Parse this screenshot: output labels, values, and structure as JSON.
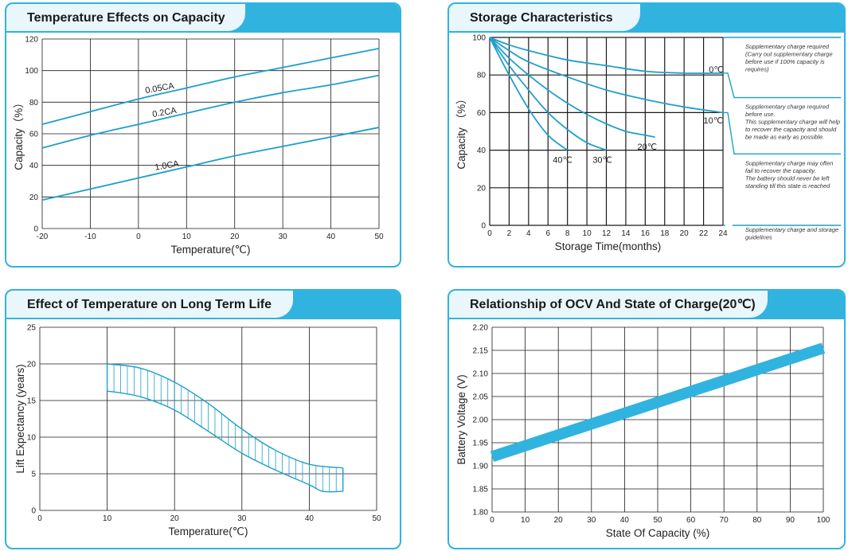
{
  "colors": {
    "accent": "#31b3e0",
    "line": "#1e9fcc",
    "grid": "#1a1a1a"
  },
  "panels": {
    "temp_capacity": {
      "title": "Temperature Effects on Capacity"
    },
    "storage": {
      "title": "Storage Characteristics"
    },
    "long_life": {
      "title": "Effect of Temperature on Long Term Life"
    },
    "ocv": {
      "title": "Relationship of OCV And State of Charge(20℃)"
    }
  },
  "chart_data": [
    {
      "type": "line",
      "title": "Temperature Effects on Capacity",
      "xlabel": "Temperature(℃)",
      "ylabel": "Capacity（%）",
      "xlim": [
        -20,
        50
      ],
      "ylim": [
        0,
        120
      ],
      "x_ticks": [
        "-20",
        "-10",
        "0",
        "10",
        "20",
        "30",
        "40",
        "50"
      ],
      "y_ticks": [
        "0",
        "20",
        "40",
        "60",
        "80",
        "100",
        "120"
      ],
      "grid": true,
      "series": [
        {
          "name": "0.05CA",
          "x": [
            -20,
            -10,
            0,
            10,
            20,
            30,
            40,
            50
          ],
          "values": [
            66,
            74,
            82,
            89,
            96,
            102,
            108,
            114
          ]
        },
        {
          "name": "0.2CA",
          "x": [
            -20,
            -10,
            0,
            10,
            20,
            30,
            40,
            50
          ],
          "values": [
            51,
            59,
            66,
            73,
            80,
            86,
            91,
            97
          ]
        },
        {
          "name": "1.0CA",
          "x": [
            -20,
            -10,
            0,
            10,
            20,
            30,
            40,
            50
          ],
          "values": [
            18,
            25,
            32,
            39,
            46,
            52,
            58,
            64
          ]
        }
      ]
    },
    {
      "type": "line",
      "title": "Storage Characteristics",
      "xlabel": "Storage  Time(months)",
      "ylabel": "Capacity  （%）",
      "xlim": [
        0,
        24
      ],
      "ylim": [
        0,
        100
      ],
      "x_ticks": [
        "0",
        "2",
        "4",
        "6",
        "8",
        "10",
        "12",
        "14",
        "16",
        "18",
        "20",
        "22",
        "24"
      ],
      "y_ticks": [
        "0",
        "20",
        "40",
        "60",
        "80",
        "100"
      ],
      "grid": true,
      "series": [
        {
          "name": "0℃",
          "x": [
            0,
            2,
            4,
            8,
            12,
            16,
            20,
            24
          ],
          "values": [
            100,
            96,
            93,
            88,
            85,
            82,
            81,
            81
          ]
        },
        {
          "name": "10℃",
          "x": [
            0,
            2,
            4,
            8,
            12,
            16,
            20,
            24
          ],
          "values": [
            100,
            93,
            87,
            79,
            72,
            67,
            63,
            60
          ]
        },
        {
          "name": "20℃",
          "x": [
            0,
            2,
            4,
            6,
            8,
            10,
            12,
            14,
            16,
            17
          ],
          "values": [
            100,
            89,
            80,
            72,
            65,
            59,
            54,
            50,
            48,
            47
          ]
        },
        {
          "name": "30℃",
          "x": [
            0,
            2,
            4,
            6,
            8,
            10,
            12
          ],
          "values": [
            100,
            85,
            72,
            60,
            51,
            44,
            40
          ]
        },
        {
          "name": "40℃",
          "x": [
            0,
            2,
            4,
            6,
            8
          ],
          "values": [
            100,
            80,
            62,
            48,
            40
          ]
        }
      ],
      "annotations": [
        "Supplementary charge required\n(Carry out supplementary charge\nbefore use if 100% capacity is\nrequires)",
        "Supplementary charge required\nbefore use.\nThis supplementary charge will help\nto recover the capacity and should\nbe made  as early as possible.",
        "Supplementary charge may often\nfail to recover the capacity.\nThe battery should never be left\nstanding till this state is reached",
        "Supplementary charge and storage\nguidelines"
      ]
    },
    {
      "type": "area",
      "title": "Effect of Temperature on Long Term Life",
      "xlabel": "Temperature(℃)",
      "ylabel": "Lift  Expectancy  (years)",
      "xlim": [
        0,
        50
      ],
      "ylim": [
        0,
        25
      ],
      "x_ticks": [
        "0",
        "10",
        "20",
        "30",
        "40",
        "50"
      ],
      "y_ticks": [
        "0",
        "5",
        "10",
        "15",
        "20",
        "25"
      ],
      "grid": true,
      "series": [
        {
          "name": "",
          "x": [
            10,
            15,
            20,
            25,
            30,
            35,
            40,
            45
          ],
          "values": [
            20,
            19.4,
            17.5,
            14.6,
            11.1,
            8.2,
            6.3,
            5.8
          ]
        },
        {
          "name": "",
          "x": [
            10,
            15,
            20,
            25,
            30,
            35,
            40,
            42,
            45
          ],
          "values": [
            16.3,
            15.5,
            13.7,
            10.8,
            7.8,
            5.5,
            3.5,
            2.6,
            2.6
          ]
        }
      ]
    },
    {
      "type": "line",
      "title": "Relationship of OCV And State of Charge(20℃)",
      "xlabel": "State Of Capacity (%)",
      "ylabel": "Battery Voltage (V)",
      "xlim": [
        0,
        100
      ],
      "ylim": [
        1.8,
        2.2
      ],
      "x_ticks": [
        "0",
        "10",
        "20",
        "30",
        "40",
        "50",
        "60",
        "70",
        "80",
        "90",
        "100"
      ],
      "y_ticks": [
        "1.80",
        "1.85",
        "1.90",
        "1.95",
        "2.00",
        "2.05",
        "2.10",
        "2.15",
        "2.20"
      ],
      "grid": true,
      "series": [
        {
          "name": "",
          "x": [
            0,
            100
          ],
          "values": [
            1.92,
            2.155
          ]
        }
      ]
    }
  ]
}
